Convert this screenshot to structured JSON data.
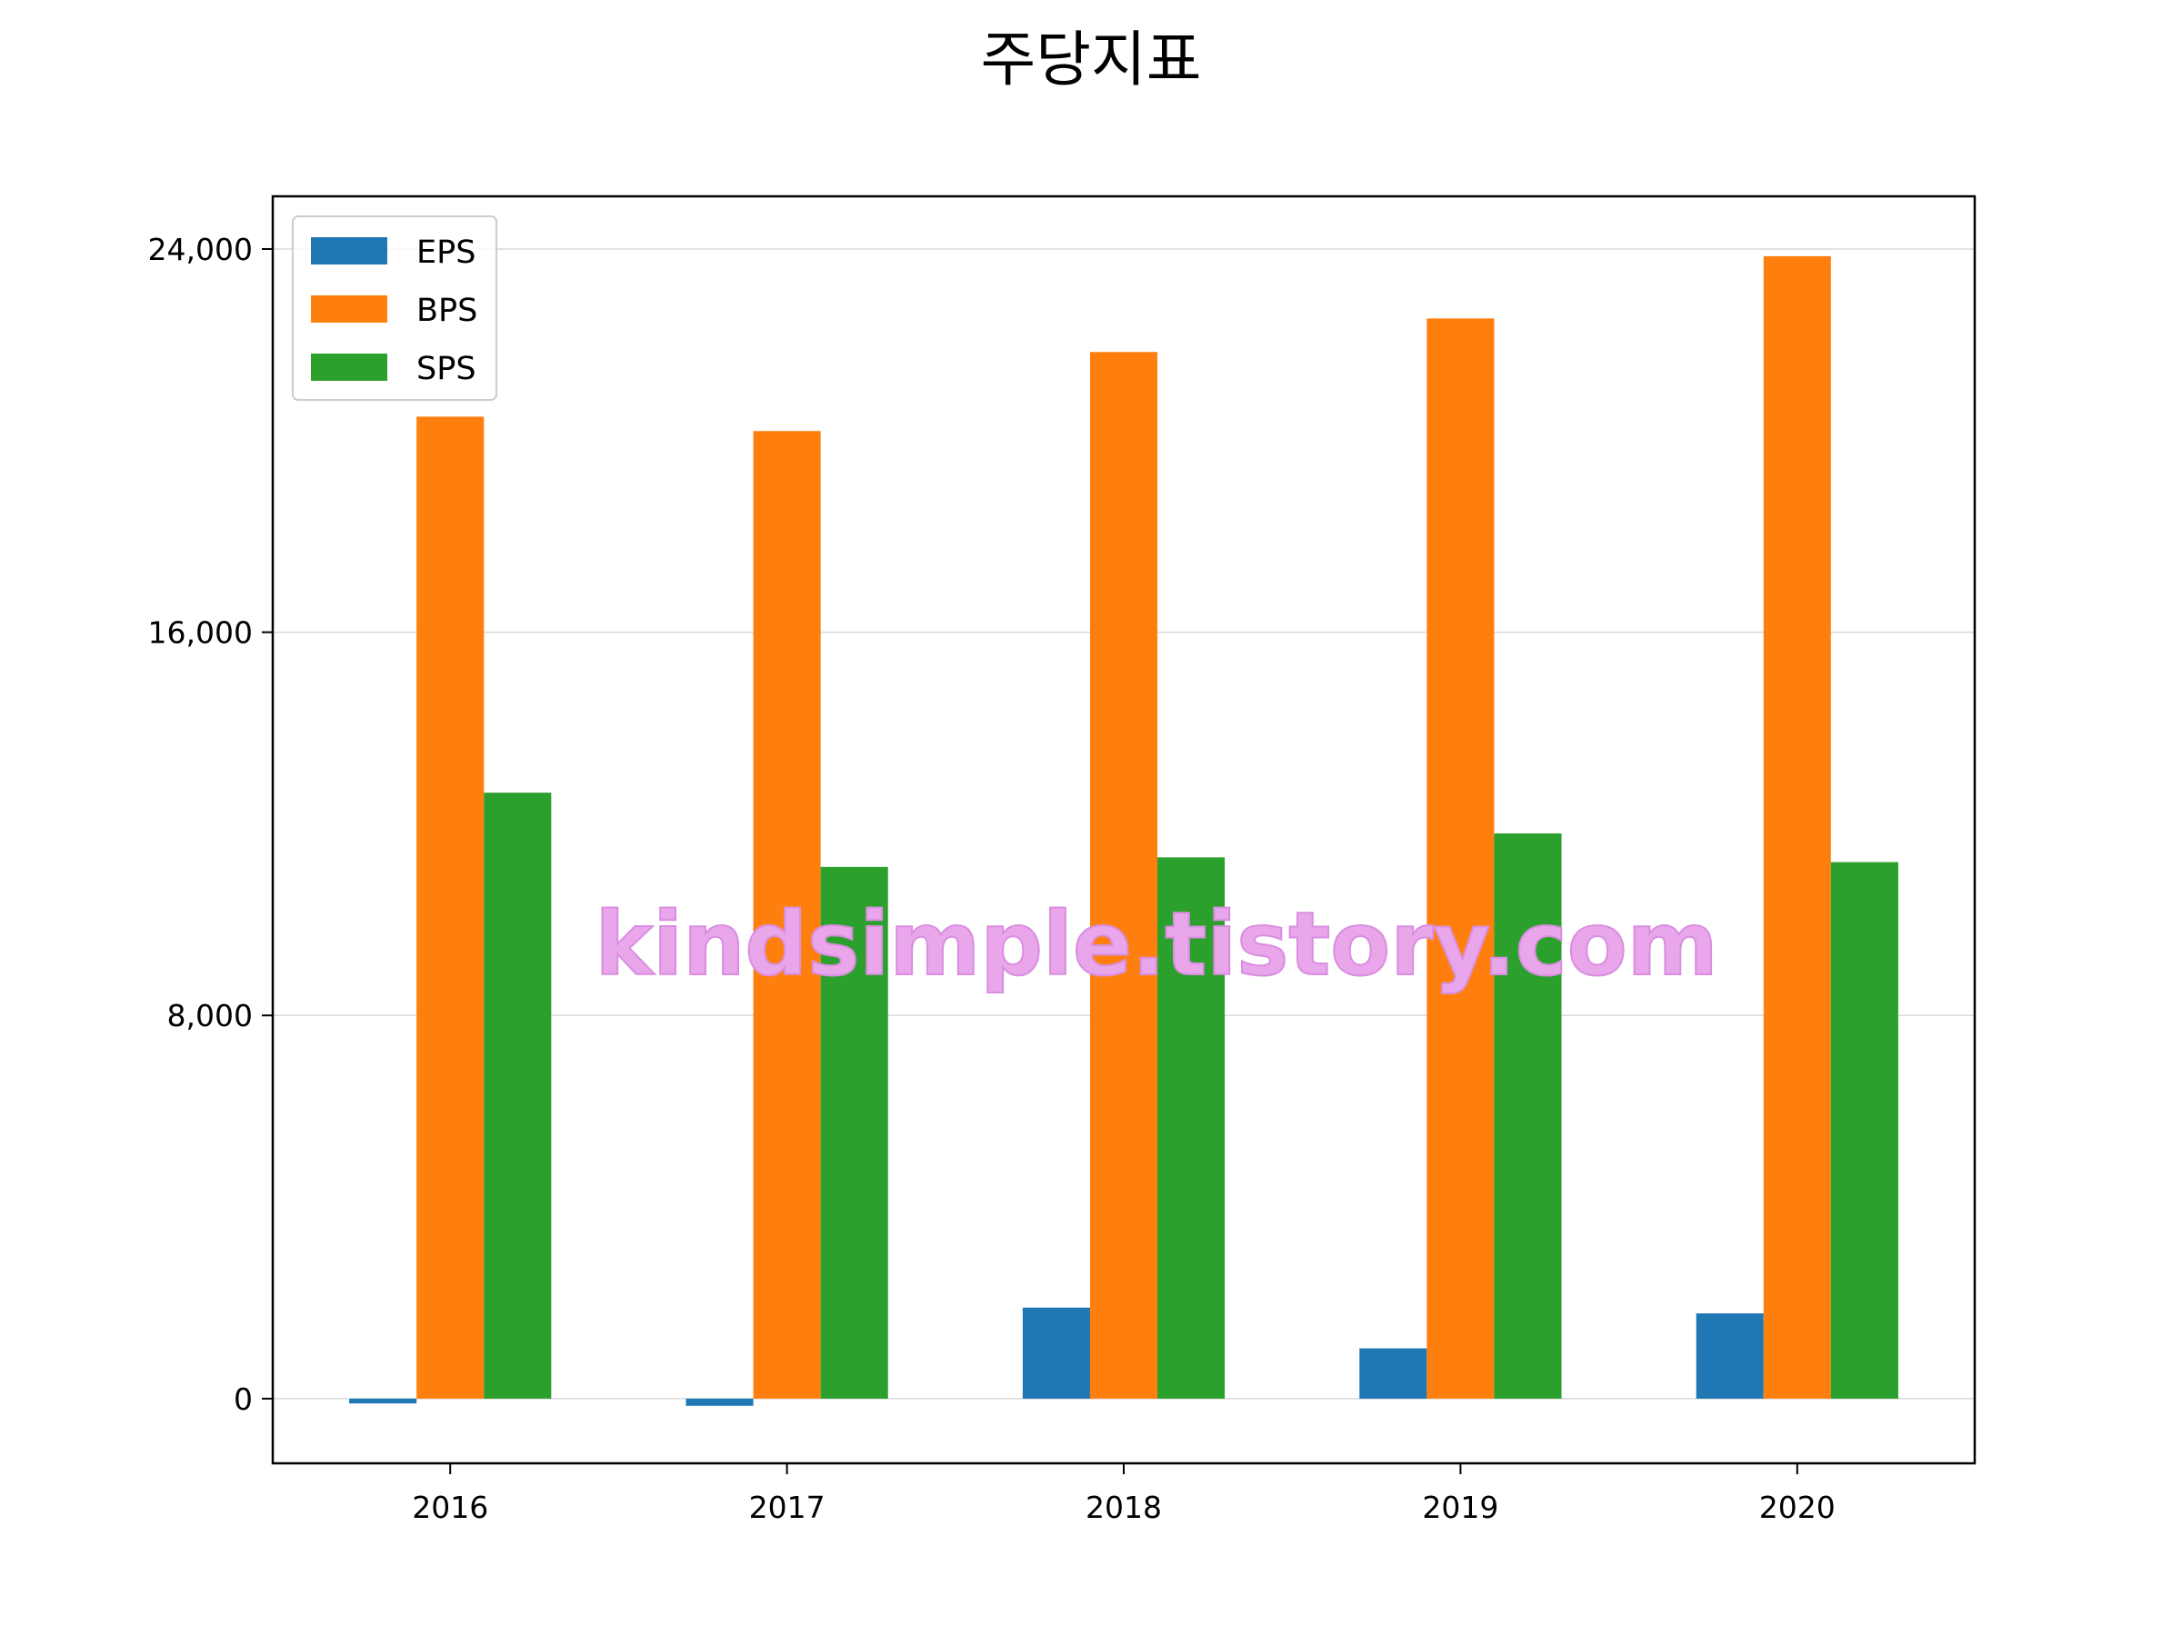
{
  "chart_data": {
    "type": "bar",
    "title": "주당지표",
    "xlabel": "",
    "ylabel": "",
    "categories": [
      "2016",
      "2017",
      "2018",
      "2019",
      "2020"
    ],
    "series": [
      {
        "name": "EPS",
        "color": "#1f77b4",
        "values": [
          -100,
          -150,
          1900,
          1050,
          1780
        ]
      },
      {
        "name": "BPS",
        "color": "#ff7f0e",
        "values": [
          20500,
          20200,
          21850,
          22550,
          23850
        ]
      },
      {
        "name": "SPS",
        "color": "#2ca02c",
        "values": [
          12650,
          11100,
          11300,
          11800,
          11200
        ]
      }
    ],
    "ylim": [
      -1350,
      25100
    ],
    "yticks": [
      0,
      8000,
      16000,
      24000
    ],
    "ytick_labels": [
      "0",
      "8,000",
      "16,000",
      "24,000"
    ],
    "grid": "horizontal",
    "legend_position": "upper-left"
  },
  "watermark": "kindsimple.tistory.com"
}
